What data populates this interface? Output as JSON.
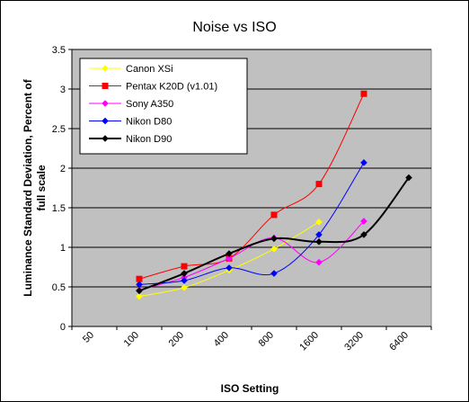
{
  "chart_data": {
    "type": "line",
    "title": "Noise vs ISO",
    "xlabel": "ISO Setting",
    "ylabel_line1": "Luminance Standard Deviation, Percent of",
    "ylabel_line2": "full scale",
    "categories": [
      "50",
      "100",
      "200",
      "400",
      "800",
      "1600",
      "3200",
      "6400"
    ],
    "ylim": [
      0,
      3.5
    ],
    "yticks": [
      "0",
      "0.5",
      "1",
      "1.5",
      "2",
      "2.5",
      "3",
      "3.5"
    ],
    "grid": true,
    "legend_position": "top-left",
    "plot_background": "#c0c0c0",
    "series": [
      {
        "name": "Canon XSi",
        "color": "#ffff00",
        "marker": "diamond",
        "smooth": true,
        "stroke_width": 1,
        "values": [
          null,
          0.38,
          0.49,
          0.71,
          0.98,
          1.32,
          null,
          null
        ]
      },
      {
        "name": "Pentax K20D (v1.01)",
        "color": "#ff0000",
        "marker": "square",
        "smooth": true,
        "stroke_width": 1,
        "values": [
          null,
          0.6,
          0.76,
          0.86,
          1.41,
          1.8,
          2.94,
          null
        ]
      },
      {
        "name": "Sony A350",
        "color": "#ff00ff",
        "marker": "diamond",
        "smooth": true,
        "stroke_width": 1,
        "values": [
          null,
          0.46,
          0.62,
          0.86,
          1.12,
          0.81,
          1.33,
          null
        ]
      },
      {
        "name": "Nikon D80",
        "color": "#0000ff",
        "marker": "diamond",
        "smooth": true,
        "stroke_width": 1,
        "values": [
          null,
          0.53,
          0.58,
          0.74,
          0.67,
          1.16,
          2.07,
          null
        ]
      },
      {
        "name": "Nikon D90",
        "color": "#000000",
        "marker": "diamond",
        "smooth": true,
        "stroke_width": 2,
        "values": [
          null,
          0.45,
          0.67,
          0.92,
          1.11,
          1.07,
          1.16,
          1.88
        ]
      }
    ]
  }
}
